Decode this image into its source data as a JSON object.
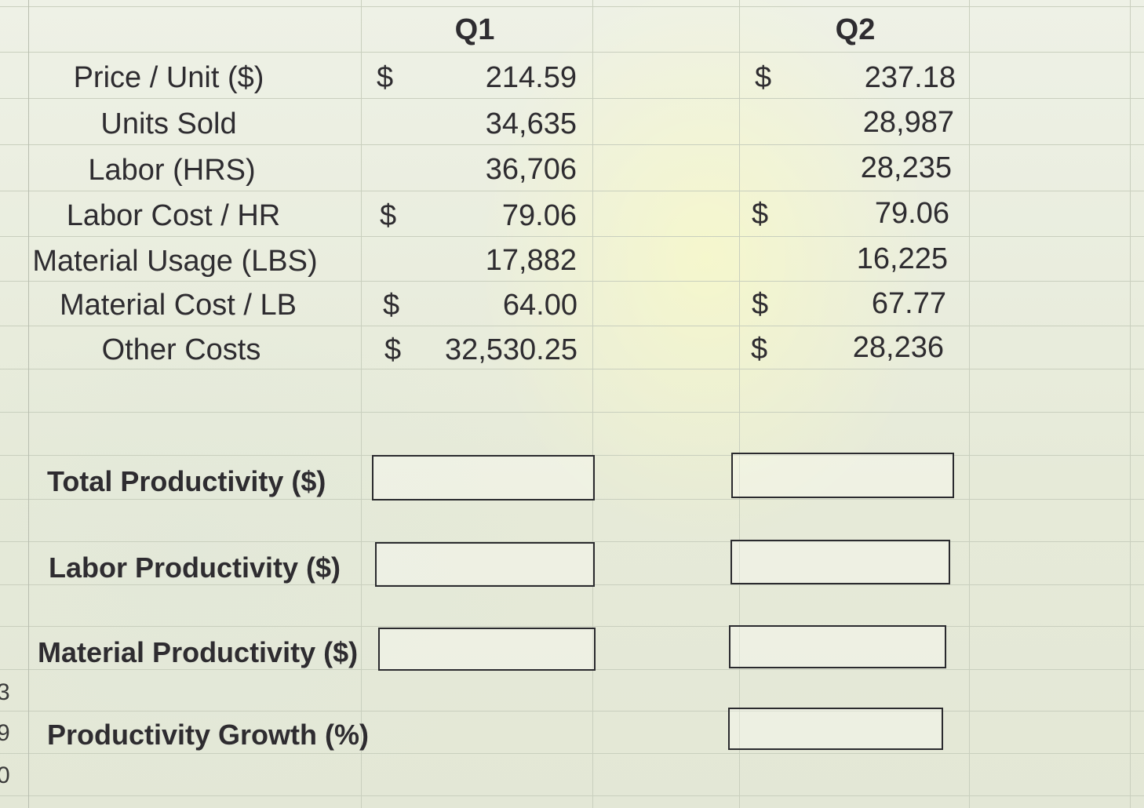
{
  "headers": {
    "q1": "Q1",
    "q2": "Q2"
  },
  "rows": [
    {
      "label": "Price / Unit ($)",
      "q1_currency": "$",
      "q1_value": "214.59",
      "q2_currency": "$",
      "q2_value": "237.18"
    },
    {
      "label": "Units Sold",
      "q1_currency": "",
      "q1_value": "34,635",
      "q2_currency": "",
      "q2_value": "28,987"
    },
    {
      "label": "Labor (HRS)",
      "q1_currency": "",
      "q1_value": "36,706",
      "q2_currency": "",
      "q2_value": "28,235"
    },
    {
      "label": "Labor Cost / HR",
      "q1_currency": "$",
      "q1_value": "79.06",
      "q2_currency": "$",
      "q2_value": "79.06"
    },
    {
      "label": "Material Usage (LBS)",
      "q1_currency": "",
      "q1_value": "17,882",
      "q2_currency": "",
      "q2_value": "16,225"
    },
    {
      "label": "Material Cost / LB",
      "q1_currency": "$",
      "q1_value": "64.00",
      "q2_currency": "$",
      "q2_value": "67.77"
    },
    {
      "label": "Other Costs",
      "q1_currency": "$",
      "q1_value": "32,530.25",
      "q2_currency": "$",
      "q2_value": "28,236"
    }
  ],
  "results": [
    {
      "label": "Total Productivity ($)",
      "q1_value": "",
      "q2_value": ""
    },
    {
      "label": "Labor Productivity ($)",
      "q1_value": "",
      "q2_value": ""
    },
    {
      "label": "Material Productivity ($)",
      "q1_value": "",
      "q2_value": ""
    },
    {
      "label": "Productivity Growth (%)",
      "q2_value": ""
    }
  ],
  "row_numbers": [
    "3",
    "9",
    "0"
  ],
  "colors": {
    "background": "#ecefdf",
    "gridline": "#c9cfbe",
    "text": "#2e2c30",
    "box_border": "#2a2a2e"
  }
}
